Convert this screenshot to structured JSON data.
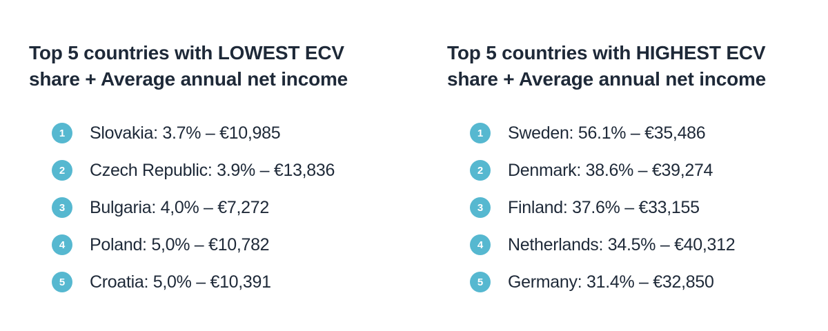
{
  "colors": {
    "accent": "#56b8d0",
    "text": "#1e2938",
    "background": "#ffffff",
    "badge_number": "#ffffff"
  },
  "panels": [
    {
      "title": "Top 5 countries with LOWEST ECV share + Average annual net income",
      "title_lines": [
        "Top 5 countries with LOWEST ECV",
        "share + Average annual net income"
      ],
      "items": [
        {
          "rank": "1",
          "label": "Slovakia: 3.7% – €10,985"
        },
        {
          "rank": "2",
          "label": "Czech Republic: 3.9% – €13,836"
        },
        {
          "rank": "3",
          "label": "Bulgaria: 4,0% – €7,272"
        },
        {
          "rank": "4",
          "label": "Poland: 5,0% – €10,782"
        },
        {
          "rank": "5",
          "label": "Croatia: 5,0% – €10,391"
        }
      ]
    },
    {
      "title": "Top 5 countries with HIGHEST ECV share + Average annual net income",
      "title_lines": [
        "Top 5 countries with HIGHEST ECV",
        "share + Average annual net income"
      ],
      "items": [
        {
          "rank": "1",
          "label": "Sweden: 56.1% – €35,486"
        },
        {
          "rank": "2",
          "label": "Denmark: 38.6% – €39,274"
        },
        {
          "rank": "3",
          "label": "Finland: 37.6% – €33,155"
        },
        {
          "rank": "4",
          "label": "Netherlands: 34.5% – €40,312"
        },
        {
          "rank": "5",
          "label": "Germany: 31.4% – €32,850"
        }
      ]
    }
  ],
  "chart_data": [
    {
      "type": "table",
      "title": "Top 5 countries with LOWEST ECV share + Average annual net income",
      "columns": [
        "rank",
        "country",
        "ecv_share",
        "avg_annual_net_income"
      ],
      "rows": [
        [
          1,
          "Slovakia",
          "3.7%",
          "€10,985"
        ],
        [
          2,
          "Czech Republic",
          "3.9%",
          "€13,836"
        ],
        [
          3,
          "Bulgaria",
          "4,0%",
          "€7,272"
        ],
        [
          4,
          "Poland",
          "5,0%",
          "€10,782"
        ],
        [
          5,
          "Croatia",
          "5,0%",
          "€10,391"
        ]
      ]
    },
    {
      "type": "table",
      "title": "Top 5 countries with HIGHEST ECV share + Average annual net income",
      "columns": [
        "rank",
        "country",
        "ecv_share",
        "avg_annual_net_income"
      ],
      "rows": [
        [
          1,
          "Sweden",
          "56.1%",
          "€35,486"
        ],
        [
          2,
          "Denmark",
          "38.6%",
          "€39,274"
        ],
        [
          3,
          "Finland",
          "37.6%",
          "€33,155"
        ],
        [
          4,
          "Netherlands",
          "34.5%",
          "€40,312"
        ],
        [
          5,
          "Germany",
          "31.4%",
          "€32,850"
        ]
      ]
    }
  ]
}
